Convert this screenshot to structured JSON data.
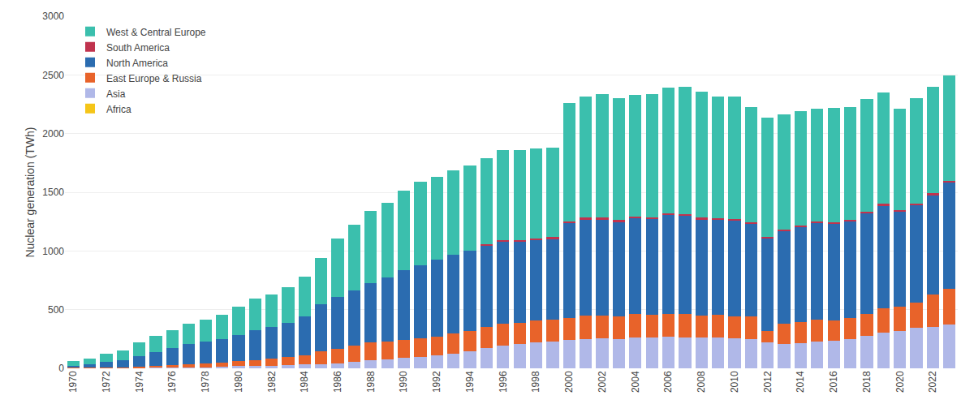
{
  "chart_data": {
    "type": "bar",
    "stacked": true,
    "ylabel": "Nuclear generation (TWh)",
    "categories": [
      "1970",
      null,
      "1972",
      null,
      "1974",
      null,
      "1976",
      null,
      "1978",
      null,
      "1980",
      null,
      "1982",
      null,
      "1984",
      null,
      "1986",
      null,
      "1988",
      null,
      "1990",
      null,
      "1992",
      null,
      "1994",
      null,
      "1996",
      null,
      "1998",
      null,
      "2000",
      null,
      "2002",
      null,
      "2004",
      null,
      "2006",
      null,
      "2008",
      null,
      "2010",
      null,
      "2012",
      null,
      "2014",
      null,
      "2016",
      null,
      "2018",
      null,
      "2020",
      null,
      "2022",
      null
    ],
    "series": [
      {
        "name": "Africa",
        "color": "#f5c518",
        "values": [
          0,
          0,
          0,
          0,
          0,
          0,
          0,
          0,
          0,
          0,
          0,
          0,
          0,
          0,
          0,
          0,
          0,
          0,
          0,
          0,
          0,
          0,
          0,
          0,
          0,
          0,
          0,
          0,
          0,
          0,
          0,
          0,
          0,
          0,
          0,
          0,
          0,
          0,
          0,
          0,
          0,
          0,
          0,
          0,
          0,
          0,
          0,
          0,
          0,
          0,
          0,
          0,
          0,
          0
        ]
      },
      {
        "name": "Asia",
        "color": "#b0b8e8",
        "values": [
          0,
          0,
          0,
          0,
          3,
          4,
          6,
          8,
          10,
          12,
          18,
          20,
          22,
          26,
          32,
          38,
          44,
          52,
          68,
          78,
          88,
          98,
          108,
          125,
          145,
          170,
          195,
          210,
          220,
          230,
          240,
          250,
          255,
          250,
          265,
          265,
          270,
          265,
          260,
          265,
          255,
          250,
          220,
          210,
          215,
          230,
          235,
          250,
          275,
          305,
          315,
          345,
          355,
          375
        ]
      },
      {
        "name": "East Europe & Russia",
        "color": "#e8632a",
        "values": [
          4,
          6,
          8,
          10,
          14,
          18,
          22,
          28,
          32,
          36,
          42,
          48,
          58,
          68,
          78,
          105,
          125,
          140,
          150,
          150,
          155,
          160,
          165,
          170,
          175,
          180,
          185,
          180,
          185,
          185,
          190,
          200,
          195,
          190,
          195,
          190,
          195,
          195,
          190,
          190,
          185,
          190,
          95,
          170,
          180,
          185,
          175,
          180,
          190,
          205,
          210,
          215,
          275,
          305
        ]
      },
      {
        "name": "North America",
        "color": "#2b6cb0",
        "values": [
          20,
          28,
          45,
          60,
          85,
          115,
          145,
          170,
          185,
          200,
          225,
          260,
          275,
          295,
          335,
          400,
          440,
          470,
          510,
          545,
          590,
          620,
          650,
          670,
          680,
          700,
          700,
          690,
          690,
          690,
          810,
          820,
          820,
          810,
          820,
          820,
          840,
          840,
          820,
          810,
          820,
          790,
          790,
          790,
          810,
          820,
          820,
          820,
          855,
          875,
          810,
          830,
          845,
          900
        ]
      },
      {
        "name": "South America",
        "color": "#c0334e",
        "values": [
          0,
          0,
          0,
          0,
          0,
          0,
          0,
          0,
          0,
          0,
          0,
          0,
          0,
          0,
          0,
          0,
          0,
          0,
          0,
          0,
          0,
          0,
          0,
          0,
          0,
          10,
          12,
          12,
          12,
          12,
          12,
          13,
          13,
          12,
          12,
          14,
          15,
          15,
          13,
          13,
          15,
          15,
          15,
          12,
          14,
          15,
          16,
          17,
          16,
          16,
          15,
          14,
          15,
          16
        ]
      },
      {
        "name": "West & Central Europe",
        "color": "#3bbfad",
        "values": [
          35,
          48,
          72,
          84,
          118,
          140,
          155,
          172,
          185,
          210,
          240,
          264,
          276,
          300,
          336,
          396,
          500,
          560,
          610,
          634,
          680,
          710,
          710,
          720,
          730,
          730,
          765,
          765,
          765,
          765,
          1010,
          1035,
          1050,
          1040,
          1040,
          1050,
          1070,
          1085,
          1075,
          1040,
          1040,
          980,
          1015,
          980,
          970,
          960,
          970,
          960,
          960,
          950,
          860,
          900,
          910,
          900
        ]
      }
    ],
    "ylim": [
      0,
      3000
    ],
    "yticks": [
      0,
      500,
      1000,
      1500,
      2000,
      2500,
      3000
    ],
    "grid": true,
    "legend": "upper left"
  }
}
